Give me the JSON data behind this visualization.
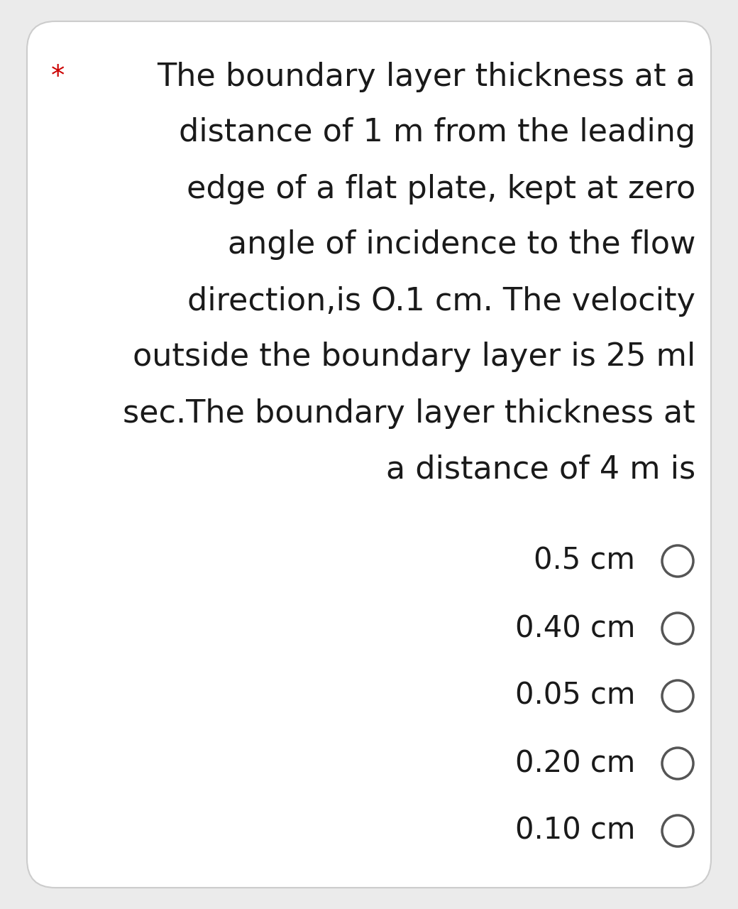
{
  "background_color": "#ebebeb",
  "card_color": "#ffffff",
  "star_text": "*",
  "star_color": "#cc0000",
  "question_lines": [
    "The boundary layer thickness at a",
    "distance of 1 m from the leading",
    "edge of a flat plate, kept at zero",
    "angle of incidence to the flow",
    "direction,is O.1 cm. The velocity",
    "outside the boundary layer is 25 ml",
    "sec.The boundary layer thickness at",
    "a distance of 4 m is"
  ],
  "options": [
    "0.5 cm",
    "0.40 cm",
    "0.05 cm",
    "0.20 cm",
    "0.10 cm"
  ],
  "text_color": "#1a1a1a",
  "circle_color": "#555555",
  "font_size_question": 32,
  "font_size_options": 30,
  "font_size_star": 28
}
